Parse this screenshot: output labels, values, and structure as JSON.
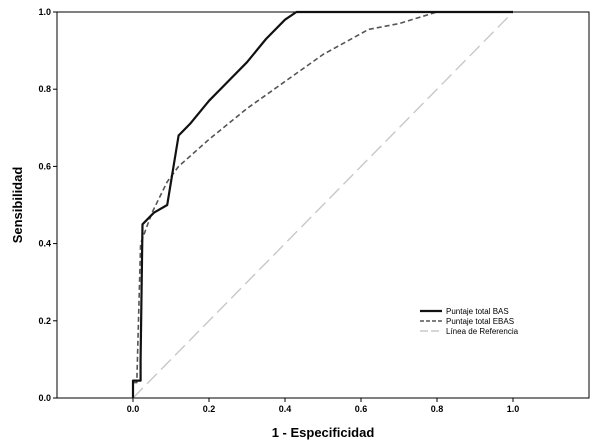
{
  "chart_data": {
    "type": "line",
    "xlabel": "1 - Especificidad",
    "ylabel": "Sensibilidad",
    "xlim": [
      -0.2,
      1.2
    ],
    "ylim": [
      0,
      1
    ],
    "x_ticks": [
      "0.0",
      "0.2",
      "0.4",
      "0.6",
      "0.8",
      "1.0"
    ],
    "y_ticks": [
      "0.0",
      "0.2",
      "0.4",
      "0.6",
      "0.8",
      "1.0"
    ],
    "legend_position": "bottom-right",
    "series": [
      {
        "name": "Puntaje total BAS",
        "style": "solid",
        "color": "#111111",
        "points": [
          [
            0.0,
            0.0
          ],
          [
            0.0,
            0.045
          ],
          [
            0.02,
            0.045
          ],
          [
            0.02,
            0.1
          ],
          [
            0.025,
            0.45
          ],
          [
            0.055,
            0.48
          ],
          [
            0.09,
            0.5
          ],
          [
            0.12,
            0.68
          ],
          [
            0.15,
            0.71
          ],
          [
            0.2,
            0.77
          ],
          [
            0.25,
            0.82
          ],
          [
            0.3,
            0.87
          ],
          [
            0.35,
            0.93
          ],
          [
            0.4,
            0.98
          ],
          [
            0.43,
            1.0
          ],
          [
            1.0,
            1.0
          ]
        ]
      },
      {
        "name": "Puntaje total EBAS",
        "style": "dashed",
        "color": "#555555",
        "points": [
          [
            0.0,
            0.0
          ],
          [
            0.0,
            0.04
          ],
          [
            0.01,
            0.04
          ],
          [
            0.02,
            0.4
          ],
          [
            0.05,
            0.48
          ],
          [
            0.09,
            0.56
          ],
          [
            0.12,
            0.6
          ],
          [
            0.2,
            0.67
          ],
          [
            0.3,
            0.75
          ],
          [
            0.4,
            0.82
          ],
          [
            0.5,
            0.89
          ],
          [
            0.62,
            0.955
          ],
          [
            0.7,
            0.97
          ],
          [
            0.8,
            1.0
          ],
          [
            1.0,
            1.0
          ]
        ]
      },
      {
        "name": "Línea de Referencia",
        "style": "long-dash",
        "color": "#c8c8c8",
        "points": [
          [
            0.0,
            0.0
          ],
          [
            1.0,
            1.0
          ]
        ]
      }
    ]
  }
}
